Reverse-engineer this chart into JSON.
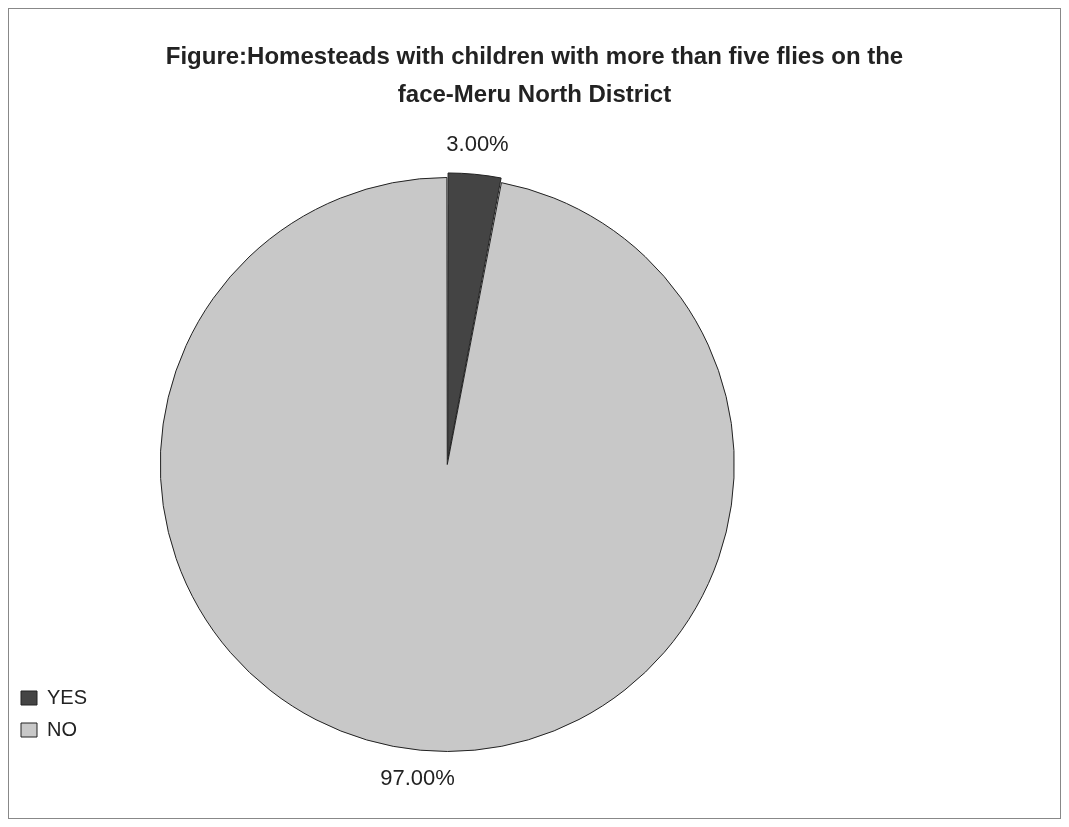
{
  "chart_data": {
    "type": "pie",
    "title": "Figure:Homesteads with children with more than five flies on the face-Meru North District",
    "categories": [
      "YES",
      "NO"
    ],
    "values": [
      3,
      97
    ],
    "colors": [
      "#444444",
      "#c8c8c8"
    ],
    "value_labels": [
      "3.00%",
      "97.00%"
    ],
    "legend": "bottom left"
  }
}
